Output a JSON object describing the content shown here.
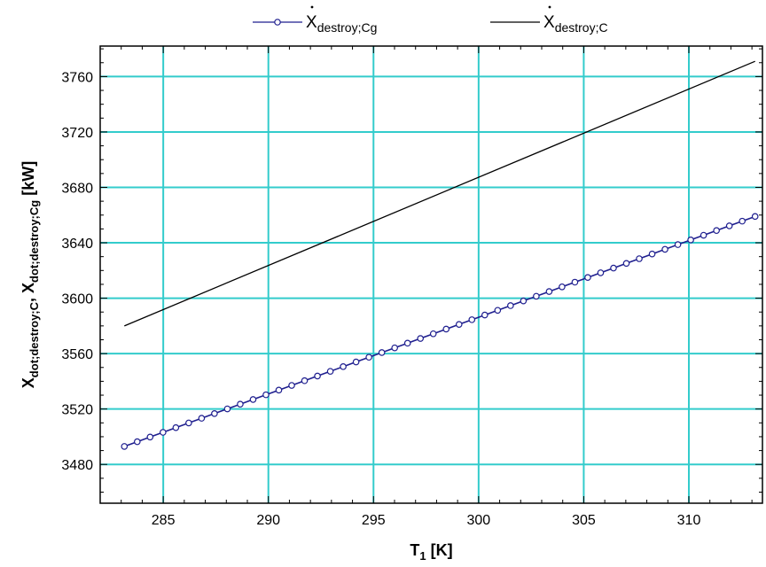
{
  "chart_data": {
    "type": "line",
    "xlabel": "T",
    "xlabel_sub": "1",
    "xlabel_unit": "[K]",
    "ylabel_parts": [
      {
        "main": "X",
        "sub": "dot;destroy;C"
      },
      {
        "main": ",  X",
        "sub": "dot;destroy;Cg"
      },
      {
        "main": " [kW]",
        "sub": ""
      }
    ],
    "xlim": [
      282,
      313.5
    ],
    "ylim": [
      3452,
      3782
    ],
    "xticks": [
      285,
      290,
      295,
      300,
      305,
      310
    ],
    "yticks": [
      3480,
      3520,
      3560,
      3600,
      3640,
      3680,
      3720,
      3760
    ],
    "x_minor_step": 1,
    "y_minor_step": 10,
    "grid": true,
    "grid_color": "#33cccc",
    "legend_position": "top-center",
    "series": [
      {
        "key": "cg",
        "legend_main": "X",
        "legend_sub": "destroy;Cg",
        "color": "#1f1f8f",
        "marker": "circle",
        "x_start": 283.15,
        "x_end": 313.15,
        "points": 50,
        "y_start": 3493,
        "y_end": 3659
      },
      {
        "key": "c",
        "legend_main": "X",
        "legend_sub": "destroy;C",
        "color": "#000000",
        "marker": "none",
        "x": [
          283.15,
          313.15
        ],
        "y": [
          3580,
          3771
        ]
      }
    ],
    "colors": {
      "frame": "#000000",
      "background": "#ffffff"
    }
  }
}
